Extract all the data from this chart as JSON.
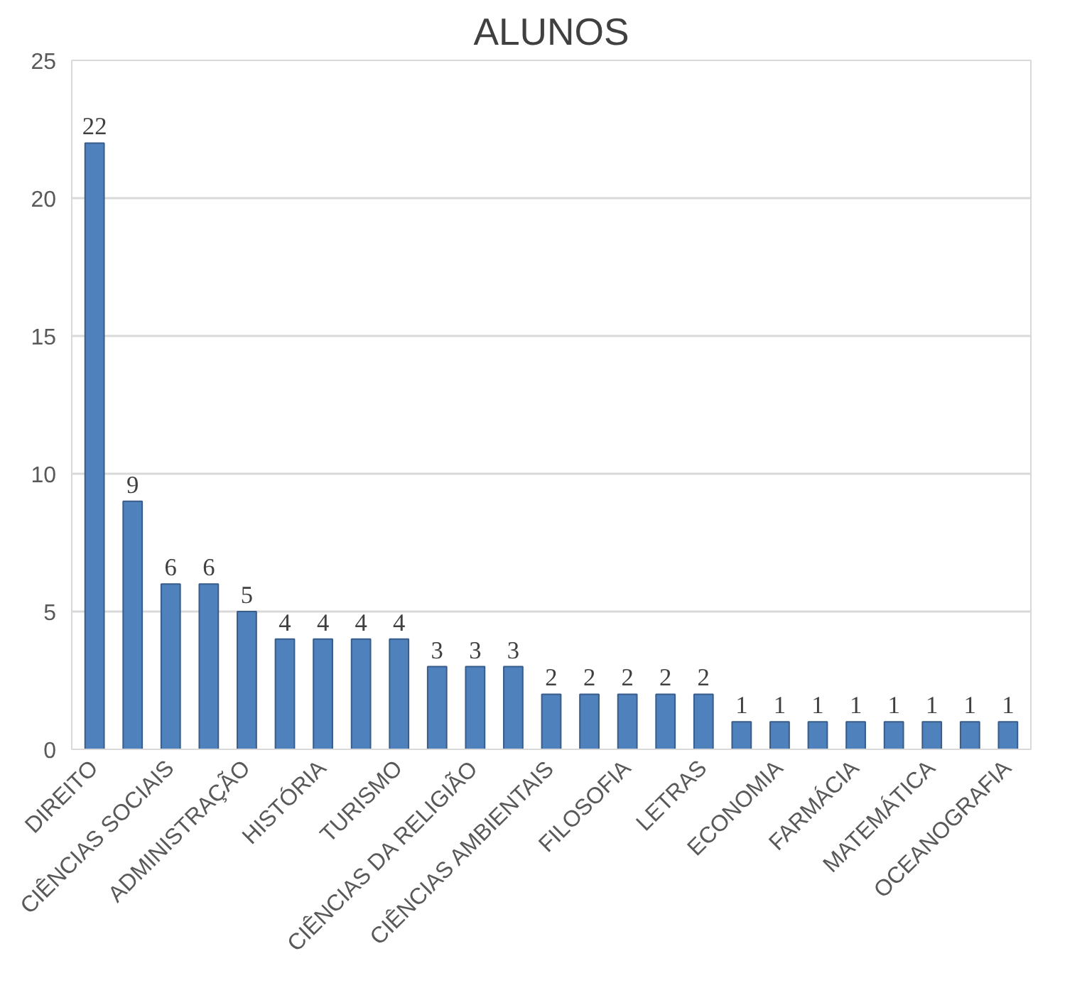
{
  "chart_data": {
    "type": "bar",
    "title": "ALUNOS",
    "categories": [
      "DIREITO",
      null,
      "CIÊNCIAS SOCIAIS",
      null,
      "ADMINISTRAÇÃO",
      null,
      "HISTÓRIA",
      null,
      "TURISMO",
      null,
      "CIÊNCIAS DA RELIGIÃO",
      null,
      "CIÊNCIAS AMBIENTAIS",
      null,
      "FILOSOFIA",
      null,
      "LETRAS",
      null,
      "ECONOMIA",
      null,
      "FARMÁCIA",
      null,
      "MATEMÁTICA",
      null,
      "OCEANOGRAFIA"
    ],
    "values": [
      22,
      9,
      6,
      6,
      5,
      4,
      4,
      4,
      4,
      3,
      3,
      3,
      2,
      2,
      2,
      2,
      2,
      1,
      1,
      1,
      1,
      1,
      1,
      1,
      1
    ],
    "color": "#4f81bd",
    "ylim": [
      0,
      25
    ],
    "yticks": [
      0,
      5,
      10,
      15,
      20,
      25
    ],
    "grid": "y",
    "data_labels": true
  }
}
